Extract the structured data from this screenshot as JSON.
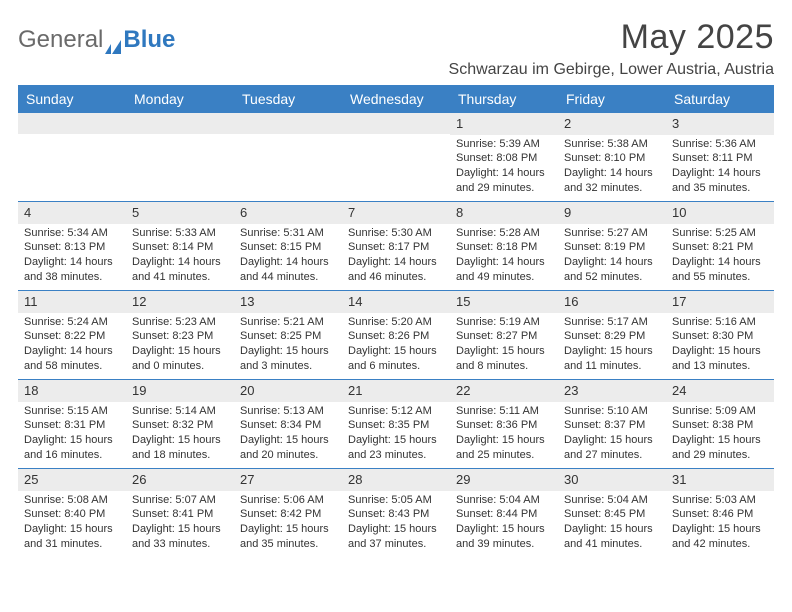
{
  "logo": {
    "general": "General",
    "blue": "Blue"
  },
  "title": {
    "month": "May 2025",
    "location": "Schwarzau im Gebirge, Lower Austria, Austria"
  },
  "colors": {
    "header_bg": "#3a80c4",
    "numbar_bg": "#ececec",
    "rule": "#3a80c4",
    "text": "#333333"
  },
  "dayNames": [
    "Sunday",
    "Monday",
    "Tuesday",
    "Wednesday",
    "Thursday",
    "Friday",
    "Saturday"
  ],
  "calendar": {
    "startWeekday": 4,
    "daysInMonth": 31,
    "cells": [
      {
        "num": "1",
        "sunrise": "Sunrise: 5:39 AM",
        "sunset": "Sunset: 8:08 PM",
        "daylight": "Daylight: 14 hours and 29 minutes."
      },
      {
        "num": "2",
        "sunrise": "Sunrise: 5:38 AM",
        "sunset": "Sunset: 8:10 PM",
        "daylight": "Daylight: 14 hours and 32 minutes."
      },
      {
        "num": "3",
        "sunrise": "Sunrise: 5:36 AM",
        "sunset": "Sunset: 8:11 PM",
        "daylight": "Daylight: 14 hours and 35 minutes."
      },
      {
        "num": "4",
        "sunrise": "Sunrise: 5:34 AM",
        "sunset": "Sunset: 8:13 PM",
        "daylight": "Daylight: 14 hours and 38 minutes."
      },
      {
        "num": "5",
        "sunrise": "Sunrise: 5:33 AM",
        "sunset": "Sunset: 8:14 PM",
        "daylight": "Daylight: 14 hours and 41 minutes."
      },
      {
        "num": "6",
        "sunrise": "Sunrise: 5:31 AM",
        "sunset": "Sunset: 8:15 PM",
        "daylight": "Daylight: 14 hours and 44 minutes."
      },
      {
        "num": "7",
        "sunrise": "Sunrise: 5:30 AM",
        "sunset": "Sunset: 8:17 PM",
        "daylight": "Daylight: 14 hours and 46 minutes."
      },
      {
        "num": "8",
        "sunrise": "Sunrise: 5:28 AM",
        "sunset": "Sunset: 8:18 PM",
        "daylight": "Daylight: 14 hours and 49 minutes."
      },
      {
        "num": "9",
        "sunrise": "Sunrise: 5:27 AM",
        "sunset": "Sunset: 8:19 PM",
        "daylight": "Daylight: 14 hours and 52 minutes."
      },
      {
        "num": "10",
        "sunrise": "Sunrise: 5:25 AM",
        "sunset": "Sunset: 8:21 PM",
        "daylight": "Daylight: 14 hours and 55 minutes."
      },
      {
        "num": "11",
        "sunrise": "Sunrise: 5:24 AM",
        "sunset": "Sunset: 8:22 PM",
        "daylight": "Daylight: 14 hours and 58 minutes."
      },
      {
        "num": "12",
        "sunrise": "Sunrise: 5:23 AM",
        "sunset": "Sunset: 8:23 PM",
        "daylight": "Daylight: 15 hours and 0 minutes."
      },
      {
        "num": "13",
        "sunrise": "Sunrise: 5:21 AM",
        "sunset": "Sunset: 8:25 PM",
        "daylight": "Daylight: 15 hours and 3 minutes."
      },
      {
        "num": "14",
        "sunrise": "Sunrise: 5:20 AM",
        "sunset": "Sunset: 8:26 PM",
        "daylight": "Daylight: 15 hours and 6 minutes."
      },
      {
        "num": "15",
        "sunrise": "Sunrise: 5:19 AM",
        "sunset": "Sunset: 8:27 PM",
        "daylight": "Daylight: 15 hours and 8 minutes."
      },
      {
        "num": "16",
        "sunrise": "Sunrise: 5:17 AM",
        "sunset": "Sunset: 8:29 PM",
        "daylight": "Daylight: 15 hours and 11 minutes."
      },
      {
        "num": "17",
        "sunrise": "Sunrise: 5:16 AM",
        "sunset": "Sunset: 8:30 PM",
        "daylight": "Daylight: 15 hours and 13 minutes."
      },
      {
        "num": "18",
        "sunrise": "Sunrise: 5:15 AM",
        "sunset": "Sunset: 8:31 PM",
        "daylight": "Daylight: 15 hours and 16 minutes."
      },
      {
        "num": "19",
        "sunrise": "Sunrise: 5:14 AM",
        "sunset": "Sunset: 8:32 PM",
        "daylight": "Daylight: 15 hours and 18 minutes."
      },
      {
        "num": "20",
        "sunrise": "Sunrise: 5:13 AM",
        "sunset": "Sunset: 8:34 PM",
        "daylight": "Daylight: 15 hours and 20 minutes."
      },
      {
        "num": "21",
        "sunrise": "Sunrise: 5:12 AM",
        "sunset": "Sunset: 8:35 PM",
        "daylight": "Daylight: 15 hours and 23 minutes."
      },
      {
        "num": "22",
        "sunrise": "Sunrise: 5:11 AM",
        "sunset": "Sunset: 8:36 PM",
        "daylight": "Daylight: 15 hours and 25 minutes."
      },
      {
        "num": "23",
        "sunrise": "Sunrise: 5:10 AM",
        "sunset": "Sunset: 8:37 PM",
        "daylight": "Daylight: 15 hours and 27 minutes."
      },
      {
        "num": "24",
        "sunrise": "Sunrise: 5:09 AM",
        "sunset": "Sunset: 8:38 PM",
        "daylight": "Daylight: 15 hours and 29 minutes."
      },
      {
        "num": "25",
        "sunrise": "Sunrise: 5:08 AM",
        "sunset": "Sunset: 8:40 PM",
        "daylight": "Daylight: 15 hours and 31 minutes."
      },
      {
        "num": "26",
        "sunrise": "Sunrise: 5:07 AM",
        "sunset": "Sunset: 8:41 PM",
        "daylight": "Daylight: 15 hours and 33 minutes."
      },
      {
        "num": "27",
        "sunrise": "Sunrise: 5:06 AM",
        "sunset": "Sunset: 8:42 PM",
        "daylight": "Daylight: 15 hours and 35 minutes."
      },
      {
        "num": "28",
        "sunrise": "Sunrise: 5:05 AM",
        "sunset": "Sunset: 8:43 PM",
        "daylight": "Daylight: 15 hours and 37 minutes."
      },
      {
        "num": "29",
        "sunrise": "Sunrise: 5:04 AM",
        "sunset": "Sunset: 8:44 PM",
        "daylight": "Daylight: 15 hours and 39 minutes."
      },
      {
        "num": "30",
        "sunrise": "Sunrise: 5:04 AM",
        "sunset": "Sunset: 8:45 PM",
        "daylight": "Daylight: 15 hours and 41 minutes."
      },
      {
        "num": "31",
        "sunrise": "Sunrise: 5:03 AM",
        "sunset": "Sunset: 8:46 PM",
        "daylight": "Daylight: 15 hours and 42 minutes."
      }
    ]
  }
}
